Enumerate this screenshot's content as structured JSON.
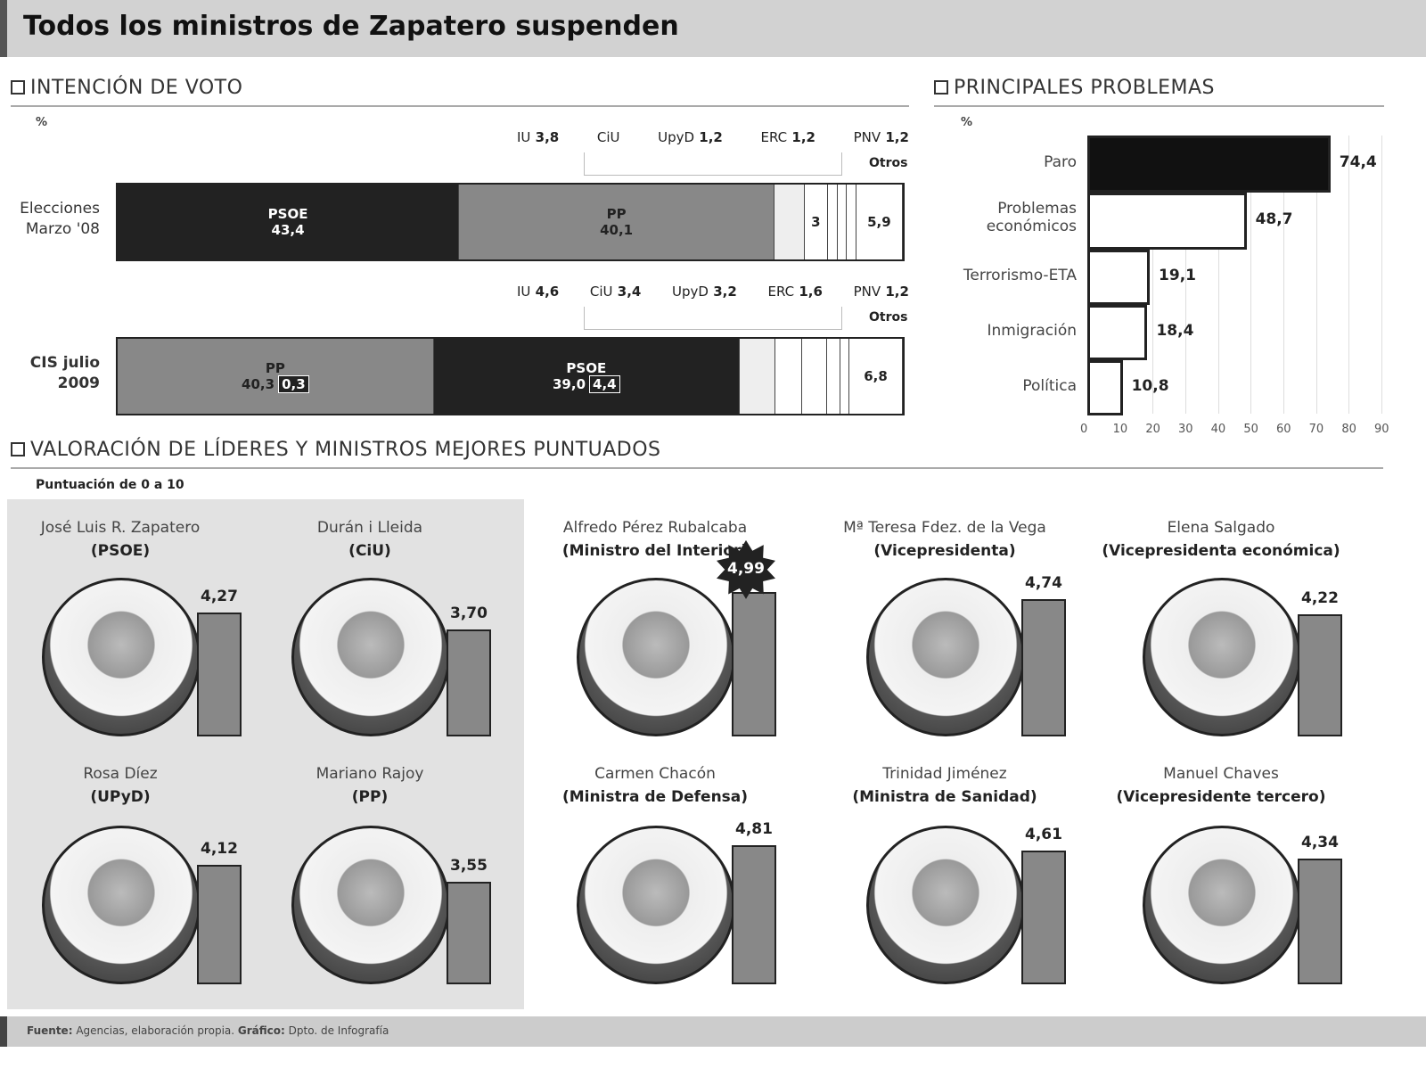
{
  "title": "Todos los ministros de Zapatero suspenden",
  "sections": {
    "vote": "INTENCIÓN DE VOTO",
    "problems": "PRINCIPALES PROBLEMAS",
    "leaders": "VALORACIÓN DE LÍDERES Y MINISTROS MEJORES PUNTUADOS",
    "leaders_sub": "Puntuación de 0 a 10",
    "unit": "%"
  },
  "chart_data": [
    {
      "type": "bar",
      "stacked": true,
      "orientation": "horizontal",
      "title": "INTENCIÓN DE VOTO",
      "ylabel": "%",
      "categories": [
        "Elecciones Marzo '08",
        "CIS julio 2009"
      ],
      "rows": [
        {
          "label": "Elecciones Marzo '08",
          "segments": [
            {
              "party": "PSOE",
              "value": 43.4,
              "label": "43,4",
              "color": "#222222"
            },
            {
              "party": "PP",
              "value": 40.1,
              "label": "40,1",
              "color": "#888888"
            },
            {
              "party": "IU",
              "value": 3.8,
              "label": "3,8",
              "color": "#eeeeee"
            },
            {
              "party": "CiU",
              "value": 3,
              "label": "3",
              "color": "#ffffff"
            },
            {
              "party": "UpyD",
              "value": 1.2,
              "label": "1,2",
              "color": "#ffffff"
            },
            {
              "party": "ERC",
              "value": 1.2,
              "label": "1,2",
              "color": "#ffffff"
            },
            {
              "party": "PNV",
              "value": 1.2,
              "label": "1,2",
              "color": "#ffffff"
            },
            {
              "party": "Otros",
              "value": 5.9,
              "label": "5,9",
              "color": "#ffffff"
            }
          ]
        },
        {
          "label": "CIS julio 2009",
          "segments": [
            {
              "party": "PP",
              "value": 40.3,
              "label": "40,3",
              "change": "0,3",
              "color": "#888888"
            },
            {
              "party": "PSOE",
              "value": 39.0,
              "label": "39,0",
              "change": "4,4",
              "color": "#222222"
            },
            {
              "party": "IU",
              "value": 4.6,
              "label": "4,6",
              "color": "#eeeeee"
            },
            {
              "party": "CiU",
              "value": 3.4,
              "label": "3,4",
              "color": "#ffffff"
            },
            {
              "party": "UpyD",
              "value": 3.2,
              "label": "3,2",
              "color": "#ffffff"
            },
            {
              "party": "ERC",
              "value": 1.6,
              "label": "1,6",
              "color": "#ffffff"
            },
            {
              "party": "PNV",
              "value": 1.2,
              "label": "1,2",
              "color": "#ffffff"
            },
            {
              "party": "Otros",
              "value": 6.8,
              "label": "6,8",
              "color": "#ffffff"
            }
          ]
        }
      ],
      "top_labels": [
        [
          {
            "p": "IU",
            "v": "3,8"
          },
          {
            "p": "CiU",
            "v": ""
          },
          {
            "p": "UpyD",
            "v": "1,2"
          },
          {
            "p": "ERC",
            "v": "1,2"
          },
          {
            "p": "PNV",
            "v": "1,2"
          }
        ],
        [
          {
            "p": "IU",
            "v": "4,6"
          },
          {
            "p": "CiU",
            "v": "3,4"
          },
          {
            "p": "UpyD",
            "v": "3,2"
          },
          {
            "p": "ERC",
            "v": "1,6"
          },
          {
            "p": "PNV",
            "v": "1,2"
          }
        ]
      ],
      "otros_label": "Otros"
    },
    {
      "type": "bar",
      "orientation": "horizontal",
      "title": "PRINCIPALES PROBLEMAS",
      "ylabel": "%",
      "categories": [
        "Paro",
        "Problemas económicos",
        "Terrorismo-ETA",
        "Inmigración",
        "Política"
      ],
      "values": [
        74.4,
        48.7,
        19.1,
        18.4,
        10.8
      ],
      "value_labels": [
        "74,4",
        "48,7",
        "19,1",
        "18,4",
        "10,8"
      ],
      "colors": [
        "#111111",
        "#ffffff",
        "#ffffff",
        "#ffffff",
        "#ffffff"
      ],
      "xlim": [
        0,
        90
      ],
      "xticks": [
        "0",
        "10",
        "20",
        "30",
        "40",
        "50",
        "60",
        "70",
        "80",
        "90"
      ],
      "grid": true
    },
    {
      "type": "bar",
      "title": "VALORACIÓN DE LÍDERES Y MINISTROS MEJORES PUNTUADOS",
      "ylim": [
        0,
        10
      ],
      "leaders": [
        {
          "name": "José Luis R. Zapatero",
          "role": "(PSOE)",
          "value": 4.27,
          "label": "4,27",
          "group": "leader"
        },
        {
          "name": "Durán i Lleida",
          "role": "(CiU)",
          "value": 3.7,
          "label": "3,70",
          "group": "leader"
        },
        {
          "name": "Alfredo Pérez Rubalcaba",
          "role": "(Ministro del Interior)",
          "value": 4.99,
          "label": "4,99",
          "group": "minister",
          "highlight": true
        },
        {
          "name": "Mª Teresa Fdez. de la Vega",
          "role": "(Vicepresidenta)",
          "value": 4.74,
          "label": "4,74",
          "group": "minister"
        },
        {
          "name": "Elena Salgado",
          "role": "(Vicepresidenta económica)",
          "value": 4.22,
          "label": "4,22",
          "group": "minister"
        },
        {
          "name": "Rosa Díez",
          "role": "(UPyD)",
          "value": 4.12,
          "label": "4,12",
          "group": "leader"
        },
        {
          "name": "Mariano Rajoy",
          "role": "(PP)",
          "value": 3.55,
          "label": "3,55",
          "group": "leader"
        },
        {
          "name": "Carmen Chacón",
          "role": "(Ministra de Defensa)",
          "value": 4.81,
          "label": "4,81",
          "group": "minister"
        },
        {
          "name": "Trinidad Jiménez",
          "role": "(Ministra de Sanidad)",
          "value": 4.61,
          "label": "4,61",
          "group": "minister"
        },
        {
          "name": "Manuel Chaves",
          "role": "(Vicepresidente tercero)",
          "value": 4.34,
          "label": "4,34",
          "group": "minister"
        }
      ]
    }
  ],
  "footer": {
    "source_label": "Fuente:",
    "source": "Agencias, elaboración propia.",
    "graphic_label": "Gráfico:",
    "graphic": "Dpto. de Infografía"
  }
}
